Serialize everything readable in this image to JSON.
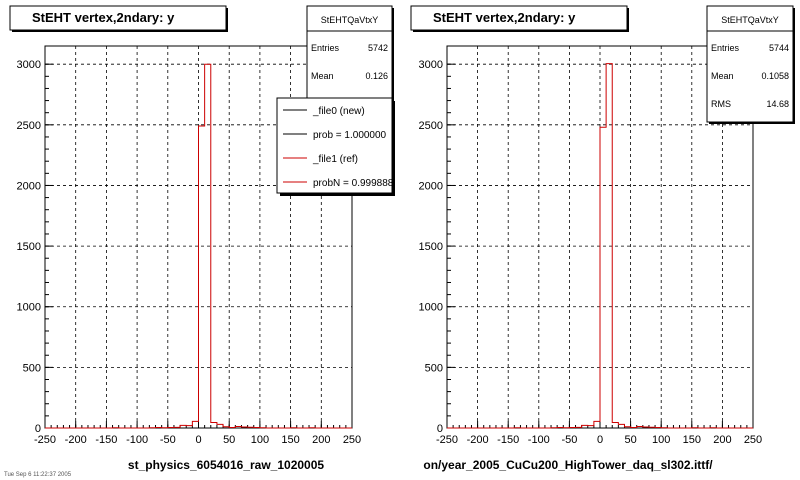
{
  "footer_text": "Tue Sep  6 11:22:37 2005",
  "chart_data": [
    {
      "type": "histogram",
      "title": "StEHT  vertex,2ndary: y",
      "xlabel": "st_physics_6054016_raw_1020005",
      "xlim": [
        -250,
        250
      ],
      "ylim": [
        0,
        3150
      ],
      "xticks": [
        -250,
        -200,
        -150,
        -100,
        -50,
        0,
        50,
        100,
        150,
        200,
        250
      ],
      "yticks": [
        0,
        500,
        1000,
        1500,
        2000,
        2500,
        3000
      ],
      "grid": true,
      "bin_width": 10,
      "stats": {
        "name": "StEHTQaVtxY",
        "rows": [
          {
            "label": "Entries",
            "value": "5742"
          },
          {
            "label": "Mean",
            "value": "0.126"
          }
        ]
      },
      "legend": {
        "position": "top-right",
        "entries": [
          {
            "label": "_file0 (new)",
            "color": "#000000"
          },
          {
            "label": "prob = 1.000000",
            "color": "#000000"
          },
          {
            "label": "_file1 (ref)",
            "color": "#cc0000"
          },
          {
            "label": "probN = 0.999888",
            "color": "#cc0000"
          }
        ]
      },
      "series": [
        {
          "color": "#cc0000",
          "bins": [
            {
              "x": -250,
              "y": 0
            },
            {
              "x": -240,
              "y": 0
            },
            {
              "x": -230,
              "y": 0
            },
            {
              "x": -220,
              "y": 0
            },
            {
              "x": -210,
              "y": 0
            },
            {
              "x": -200,
              "y": 0
            },
            {
              "x": -190,
              "y": 0
            },
            {
              "x": -180,
              "y": 0
            },
            {
              "x": -170,
              "y": 0
            },
            {
              "x": -160,
              "y": 0
            },
            {
              "x": -150,
              "y": 0
            },
            {
              "x": -140,
              "y": 2
            },
            {
              "x": -130,
              "y": 0
            },
            {
              "x": -120,
              "y": 0
            },
            {
              "x": -110,
              "y": 0
            },
            {
              "x": -100,
              "y": 0
            },
            {
              "x": -90,
              "y": 0
            },
            {
              "x": -80,
              "y": 2
            },
            {
              "x": -70,
              "y": 4
            },
            {
              "x": -60,
              "y": 2
            },
            {
              "x": -50,
              "y": 4
            },
            {
              "x": -40,
              "y": 5
            },
            {
              "x": -30,
              "y": 22
            },
            {
              "x": -20,
              "y": 20
            },
            {
              "x": -10,
              "y": 55
            },
            {
              "x": 0,
              "y": 2490
            },
            {
              "x": 10,
              "y": 3000
            },
            {
              "x": 20,
              "y": 45
            },
            {
              "x": 30,
              "y": 30
            },
            {
              "x": 40,
              "y": 10
            },
            {
              "x": 50,
              "y": 4
            },
            {
              "x": 60,
              "y": 12
            },
            {
              "x": 70,
              "y": 8
            },
            {
              "x": 80,
              "y": 6
            },
            {
              "x": 90,
              "y": 4
            },
            {
              "x": 100,
              "y": 2
            },
            {
              "x": 110,
              "y": 0
            },
            {
              "x": 120,
              "y": 0
            },
            {
              "x": 130,
              "y": 0
            },
            {
              "x": 140,
              "y": 0
            },
            {
              "x": 150,
              "y": 2
            },
            {
              "x": 160,
              "y": 0
            },
            {
              "x": 170,
              "y": 0
            },
            {
              "x": 180,
              "y": 2
            },
            {
              "x": 190,
              "y": 0
            },
            {
              "x": 200,
              "y": 0
            },
            {
              "x": 210,
              "y": 0
            },
            {
              "x": 220,
              "y": 0
            },
            {
              "x": 230,
              "y": 0
            },
            {
              "x": 240,
              "y": 0
            }
          ]
        }
      ]
    },
    {
      "type": "histogram",
      "title": "StEHT  vertex,2ndary: y",
      "xlabel": "on/year_2005_CuCu200_HighTower_daq_sl302.ittf/",
      "xlim": [
        -250,
        250
      ],
      "ylim": [
        0,
        3150
      ],
      "xticks": [
        -250,
        -200,
        -150,
        -100,
        -50,
        0,
        50,
        100,
        150,
        200,
        250
      ],
      "yticks": [
        0,
        500,
        1000,
        1500,
        2000,
        2500,
        3000
      ],
      "grid": true,
      "bin_width": 10,
      "stats": {
        "name": "StEHTQaVtxY",
        "rows": [
          {
            "label": "Entries",
            "value": "5744"
          },
          {
            "label": "Mean",
            "value": "0.1058"
          },
          {
            "label": "RMS",
            "value": "14.68"
          }
        ]
      },
      "legend": null,
      "series": [
        {
          "color": "#cc0000",
          "bins": [
            {
              "x": -250,
              "y": 0
            },
            {
              "x": -240,
              "y": 0
            },
            {
              "x": -230,
              "y": 0
            },
            {
              "x": -220,
              "y": 0
            },
            {
              "x": -210,
              "y": 0
            },
            {
              "x": -200,
              "y": 0
            },
            {
              "x": -190,
              "y": 0
            },
            {
              "x": -180,
              "y": 0
            },
            {
              "x": -170,
              "y": 0
            },
            {
              "x": -160,
              "y": 0
            },
            {
              "x": -150,
              "y": 0
            },
            {
              "x": -140,
              "y": 2
            },
            {
              "x": -130,
              "y": 0
            },
            {
              "x": -120,
              "y": 0
            },
            {
              "x": -110,
              "y": 0
            },
            {
              "x": -100,
              "y": 0
            },
            {
              "x": -90,
              "y": 0
            },
            {
              "x": -80,
              "y": 2
            },
            {
              "x": -70,
              "y": 4
            },
            {
              "x": -60,
              "y": 2
            },
            {
              "x": -50,
              "y": 4
            },
            {
              "x": -40,
              "y": 5
            },
            {
              "x": -30,
              "y": 22
            },
            {
              "x": -20,
              "y": 20
            },
            {
              "x": -10,
              "y": 55
            },
            {
              "x": 0,
              "y": 2480
            },
            {
              "x": 10,
              "y": 3005
            },
            {
              "x": 20,
              "y": 45
            },
            {
              "x": 30,
              "y": 30
            },
            {
              "x": 40,
              "y": 10
            },
            {
              "x": 50,
              "y": 4
            },
            {
              "x": 60,
              "y": 12
            },
            {
              "x": 70,
              "y": 8
            },
            {
              "x": 80,
              "y": 6
            },
            {
              "x": 90,
              "y": 4
            },
            {
              "x": 100,
              "y": 2
            },
            {
              "x": 110,
              "y": 0
            },
            {
              "x": 120,
              "y": 0
            },
            {
              "x": 130,
              "y": 0
            },
            {
              "x": 140,
              "y": 0
            },
            {
              "x": 150,
              "y": 2
            },
            {
              "x": 160,
              "y": 0
            },
            {
              "x": 170,
              "y": 0
            },
            {
              "x": 180,
              "y": 2
            },
            {
              "x": 190,
              "y": 0
            },
            {
              "x": 200,
              "y": 0
            },
            {
              "x": 210,
              "y": 0
            },
            {
              "x": 220,
              "y": 0
            },
            {
              "x": 230,
              "y": 0
            },
            {
              "x": 240,
              "y": 0
            }
          ]
        }
      ]
    }
  ]
}
